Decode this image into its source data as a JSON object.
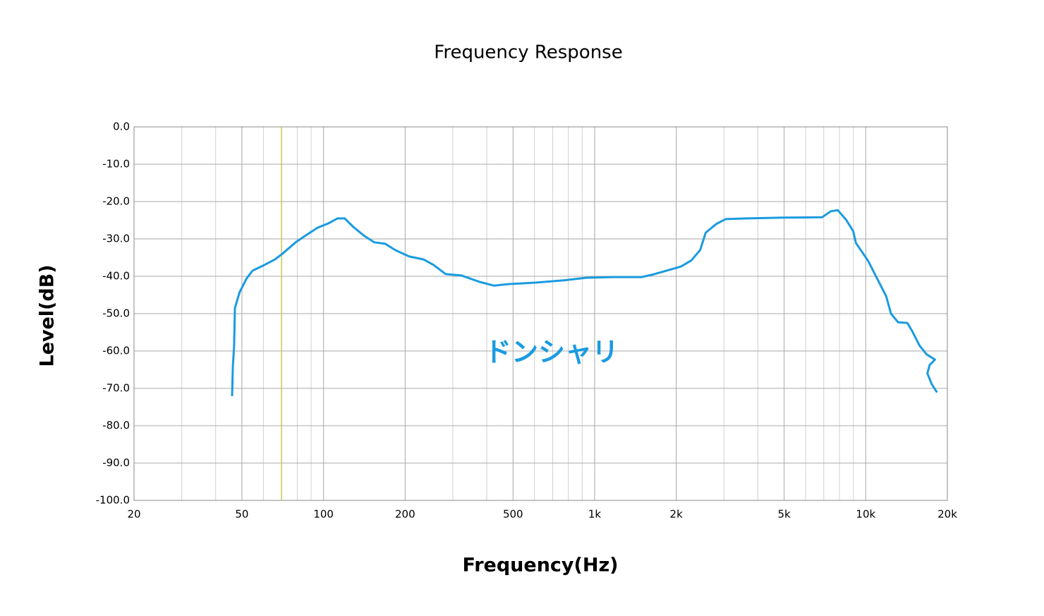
{
  "chart_data": {
    "type": "line",
    "title": "Frequency Response",
    "x_label": "Frequency(Hz)",
    "y_label": "Level(dB)",
    "annotation": "ドンシャリ",
    "annotation_color": "#1a9be0",
    "x_scale": "log",
    "xlim": [
      20,
      20000
    ],
    "xticks": [
      20,
      50,
      100,
      200,
      500,
      {
        "value": 1000,
        "label": "1k"
      },
      {
        "value": 2000,
        "label": "2k"
      },
      {
        "value": 5000,
        "label": "5k"
      },
      {
        "value": 10000,
        "label": "10k"
      },
      {
        "value": 20000,
        "label": "20k"
      }
    ],
    "xminorticks": [
      30,
      40,
      60,
      70,
      80,
      90,
      300,
      400,
      600,
      700,
      800,
      900,
      3000,
      4000,
      6000,
      7000,
      8000,
      9000
    ],
    "ylim": [
      -100,
      0
    ],
    "yticks": [
      {
        "value": 0,
        "label": "0.0"
      },
      {
        "value": -10,
        "label": "-10.0"
      },
      {
        "value": -20,
        "label": "-20.0"
      },
      {
        "value": -30,
        "label": "-30.0"
      },
      {
        "value": -40,
        "label": "-40.0"
      },
      {
        "value": -50,
        "label": "-50.0"
      },
      {
        "value": -60,
        "label": "-60.0"
      },
      {
        "value": -70,
        "label": "-70.0"
      },
      {
        "value": -80,
        "label": "-80.0"
      },
      {
        "value": -90,
        "label": "-90.0"
      },
      {
        "value": -100,
        "label": "-100.0"
      }
    ],
    "grid": true,
    "marker_line": {
      "x": 70,
      "color": "#c8c850"
    },
    "x": [
      46,
      46.3,
      46.8,
      47.1,
      49,
      52,
      54.7,
      60.4,
      66.2,
      70.4,
      79.3,
      86.6,
      95,
      104.5,
      112.6,
      119.7,
      128.8,
      141.4,
      153.8,
      169,
      184,
      207,
      234,
      255,
      282,
      323,
      377,
      426,
      480,
      605,
      769,
      929,
      1170,
      1490,
      1625,
      1840,
      2080,
      2270,
      2450,
      2570,
      2810,
      3040,
      3630,
      4980,
      6900,
      7430,
      7890,
      8470,
      8990,
      9200,
      10190,
      11010,
      11890,
      12390,
      13160,
      14240,
      14840,
      15780,
      16770,
      18000,
      17200,
      16880,
      17520,
      18320
    ],
    "series": [
      {
        "color": "#1a9be0",
        "values": [
          -72.1,
          -64.2,
          -58.5,
          -48.5,
          -44.3,
          -40.6,
          -38.5,
          -37.0,
          -35.5,
          -34.0,
          -30.8,
          -28.9,
          -27.0,
          -25.8,
          -24.5,
          -24.5,
          -26.8,
          -29.2,
          -30.9,
          -31.3,
          -33.0,
          -34.7,
          -35.5,
          -37.0,
          -39.4,
          -39.8,
          -41.5,
          -42.5,
          -42.1,
          -41.7,
          -41.1,
          -40.4,
          -40.2,
          -40.2,
          -39.6,
          -38.5,
          -37.4,
          -35.8,
          -33.0,
          -28.3,
          -26.0,
          -24.7,
          -24.5,
          -24.3,
          -24.2,
          -22.6,
          -22.3,
          -24.9,
          -27.9,
          -31.1,
          -35.8,
          -40.6,
          -45.3,
          -50.0,
          -52.3,
          -52.5,
          -54.7,
          -58.5,
          -60.9,
          -62.3,
          -63.8,
          -66.0,
          -68.9,
          -71.1
        ]
      }
    ]
  }
}
